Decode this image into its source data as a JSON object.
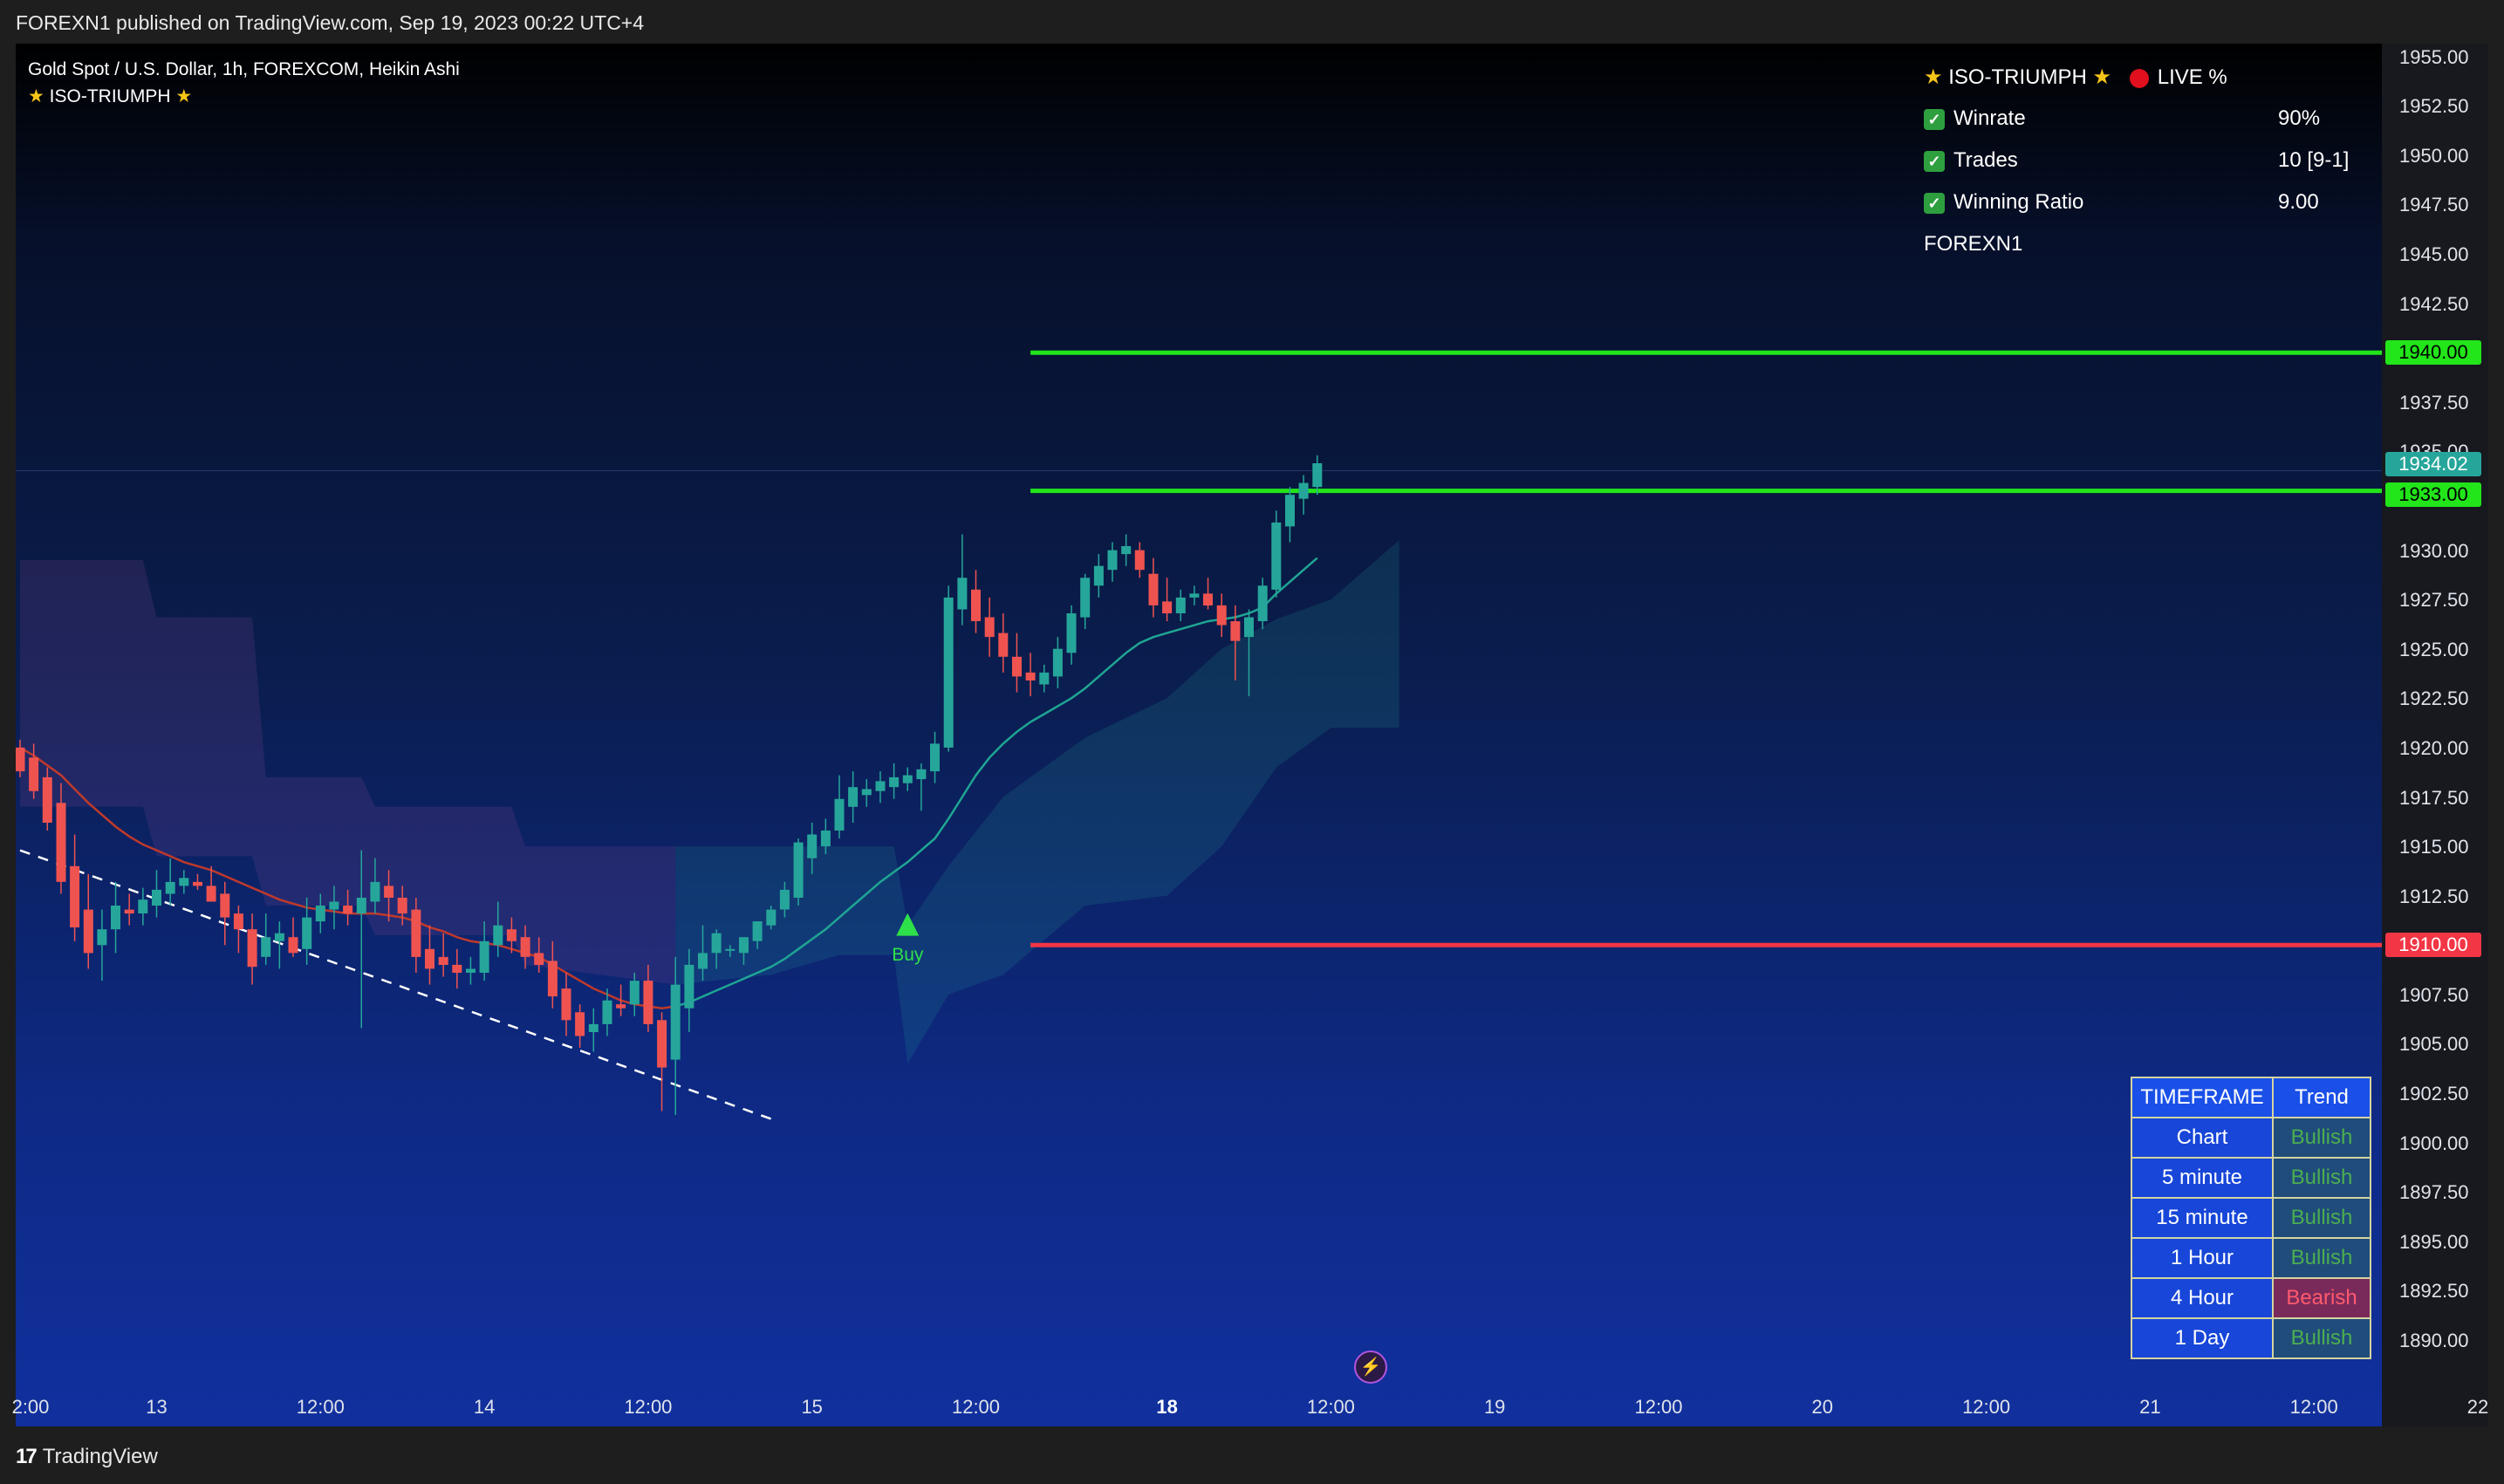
{
  "header": {
    "published_text": "FOREXN1 published on TradingView.com, Sep 19, 2023 00:22 UTC+4"
  },
  "legend": {
    "symbol_line": "Gold Spot / U.S. Dollar, 1h, FOREXCOM, Heikin Ashi",
    "indicator_line": "ISO-TRIUMPH"
  },
  "stats_panel": {
    "title": "ISO-TRIUMPH",
    "live_label": "LIVE %",
    "rows": [
      {
        "label": "Winrate",
        "value": "90%"
      },
      {
        "label": "Trades",
        "value": "10 [9-1]"
      },
      {
        "label": "Winning Ratio",
        "value": "9.00"
      }
    ],
    "author": "FOREXN1"
  },
  "trend_table": {
    "header": {
      "timeframe": "TIMEFRAME",
      "trend": "Trend"
    },
    "rows": [
      {
        "timeframe": "Chart",
        "trend": "Bullish"
      },
      {
        "timeframe": "5 minute",
        "trend": "Bullish"
      },
      {
        "timeframe": "15 minute",
        "trend": "Bullish"
      },
      {
        "timeframe": "1 Hour",
        "trend": "Bullish"
      },
      {
        "timeframe": "4 Hour",
        "trend": "Bearish"
      },
      {
        "timeframe": "1 Day",
        "trend": "Bullish"
      }
    ]
  },
  "colors": {
    "bull": "#26a69a",
    "bear": "#ef5350",
    "tp": "#22e51a",
    "sl": "#f23645",
    "last": "#26a69a"
  },
  "footer": {
    "brand": "TradingView"
  },
  "chart_data": {
    "type": "candlestick",
    "yaxis": {
      "ylim": [
        1888.5,
        1956.0
      ],
      "ticks": [
        "1955.00",
        "1952.50",
        "1950.00",
        "1947.50",
        "1945.00",
        "1942.50",
        "1937.50",
        "1935.00",
        "1930.00",
        "1927.50",
        "1925.00",
        "1922.50",
        "1920.00",
        "1917.50",
        "1915.00",
        "1912.50",
        "1907.50",
        "1905.00",
        "1902.50",
        "1900.00",
        "1897.50",
        "1895.00",
        "1892.50",
        "1890.00"
      ]
    },
    "xaxis": {
      "labels": [
        {
          "text": "2:00",
          "bar": -1
        },
        {
          "text": "13",
          "bar": 10
        },
        {
          "text": "12:00",
          "bar": 22
        },
        {
          "text": "14",
          "bar": 34
        },
        {
          "text": "12:00",
          "bar": 46
        },
        {
          "text": "15",
          "bar": 58
        },
        {
          "text": "12:00",
          "bar": 70
        },
        {
          "text": "18",
          "bar": 84,
          "bold": true
        },
        {
          "text": "12:00",
          "bar": 96
        },
        {
          "text": "19",
          "bar": 108
        },
        {
          "text": "12:00",
          "bar": 120
        },
        {
          "text": "20",
          "bar": 132
        },
        {
          "text": "12:00",
          "bar": 144
        },
        {
          "text": "21",
          "bar": 156
        },
        {
          "text": "12:00",
          "bar": 168
        },
        {
          "text": "22",
          "bar": 180
        }
      ]
    },
    "levels": [
      {
        "name": "take-profit",
        "value": 1940.0,
        "label": "1940.00",
        "start_bar": 74
      },
      {
        "name": "entry",
        "value": 1933.0,
        "label": "1933.00",
        "start_bar": 74
      },
      {
        "name": "stop-loss",
        "value": 1910.0,
        "label": "1910.00",
        "start_bar": 74
      }
    ],
    "last_price": {
      "value": 1934.02,
      "label": "1934.02"
    },
    "signal": {
      "type": "Buy",
      "bar": 65,
      "value": 1911.0,
      "label": "Buy"
    },
    "trendline": {
      "start": {
        "bar": 0,
        "value": 1914.8
      },
      "end": {
        "bar": 55,
        "value": 1901.2
      }
    },
    "candles": [
      [
        1920.0,
        1920.4,
        1918.5,
        1918.8
      ],
      [
        1919.5,
        1920.2,
        1917.4,
        1917.8
      ],
      [
        1918.5,
        1919.0,
        1915.8,
        1916.2
      ],
      [
        1917.2,
        1918.2,
        1912.6,
        1913.2
      ],
      [
        1914.0,
        1915.6,
        1910.2,
        1910.9
      ],
      [
        1911.8,
        1913.6,
        1908.8,
        1909.6
      ],
      [
        1910.0,
        1911.8,
        1908.2,
        1910.8
      ],
      [
        1910.8,
        1913.2,
        1909.6,
        1912.0
      ],
      [
        1911.8,
        1912.6,
        1911.0,
        1911.6
      ],
      [
        1911.6,
        1912.9,
        1911.0,
        1912.3
      ],
      [
        1912.0,
        1913.8,
        1911.4,
        1912.8
      ],
      [
        1912.6,
        1914.4,
        1912.0,
        1913.2
      ],
      [
        1913.0,
        1913.8,
        1912.6,
        1913.4
      ],
      [
        1913.2,
        1913.6,
        1912.8,
        1913.0
      ],
      [
        1913.0,
        1914.0,
        1912.4,
        1912.2
      ],
      [
        1912.6,
        1913.2,
        1910.0,
        1911.4
      ],
      [
        1911.6,
        1912.0,
        1909.6,
        1910.8
      ],
      [
        1910.8,
        1911.6,
        1908.0,
        1908.9
      ],
      [
        1909.4,
        1911.6,
        1909.0,
        1910.4
      ],
      [
        1910.2,
        1911.2,
        1908.8,
        1910.6
      ],
      [
        1910.4,
        1911.4,
        1909.4,
        1909.6
      ],
      [
        1909.8,
        1912.4,
        1909.0,
        1911.4
      ],
      [
        1911.2,
        1912.6,
        1910.6,
        1912.0
      ],
      [
        1911.8,
        1913.0,
        1910.8,
        1912.2
      ],
      [
        1912.0,
        1912.8,
        1911.0,
        1911.6
      ],
      [
        1911.6,
        1914.8,
        1905.8,
        1912.4
      ],
      [
        1912.2,
        1914.4,
        1911.6,
        1913.2
      ],
      [
        1913.0,
        1913.8,
        1911.2,
        1912.4
      ],
      [
        1912.4,
        1913.0,
        1911.0,
        1911.6
      ],
      [
        1911.8,
        1912.4,
        1908.6,
        1909.4
      ],
      [
        1909.8,
        1911.0,
        1908.0,
        1908.8
      ],
      [
        1909.4,
        1910.6,
        1908.4,
        1909.0
      ],
      [
        1909.0,
        1909.8,
        1907.8,
        1908.6
      ],
      [
        1908.6,
        1909.4,
        1908.0,
        1908.8
      ],
      [
        1908.6,
        1911.2,
        1908.2,
        1910.2
      ],
      [
        1910.0,
        1912.2,
        1909.4,
        1911.0
      ],
      [
        1910.8,
        1911.4,
        1909.6,
        1910.2
      ],
      [
        1910.4,
        1911.0,
        1908.8,
        1909.4
      ],
      [
        1909.6,
        1910.4,
        1908.6,
        1909.0
      ],
      [
        1909.2,
        1910.2,
        1906.8,
        1907.4
      ],
      [
        1907.8,
        1908.6,
        1905.4,
        1906.2
      ],
      [
        1906.6,
        1907.0,
        1904.8,
        1905.4
      ],
      [
        1905.6,
        1906.8,
        1904.6,
        1906.0
      ],
      [
        1906.0,
        1907.8,
        1905.4,
        1907.2
      ],
      [
        1907.0,
        1908.0,
        1906.4,
        1906.8
      ],
      [
        1907.0,
        1908.6,
        1906.4,
        1908.2
      ],
      [
        1908.2,
        1909.0,
        1905.6,
        1906.0
      ],
      [
        1906.2,
        1906.6,
        1901.6,
        1903.8
      ],
      [
        1904.2,
        1909.4,
        1901.4,
        1908.0
      ],
      [
        1906.8,
        1909.8,
        1905.6,
        1909.0
      ],
      [
        1908.8,
        1911.0,
        1908.2,
        1909.6
      ],
      [
        1909.6,
        1910.8,
        1908.8,
        1910.6
      ],
      [
        1909.8,
        1910.0,
        1909.4,
        1909.8
      ],
      [
        1909.6,
        1910.2,
        1909.0,
        1910.4
      ],
      [
        1910.2,
        1911.2,
        1909.8,
        1911.2
      ],
      [
        1911.0,
        1912.0,
        1910.8,
        1911.8
      ],
      [
        1911.8,
        1913.2,
        1911.4,
        1912.8
      ],
      [
        1912.4,
        1915.4,
        1912.0,
        1915.2
      ],
      [
        1914.4,
        1916.2,
        1913.6,
        1915.6
      ],
      [
        1915.0,
        1916.4,
        1914.6,
        1915.8
      ],
      [
        1915.8,
        1918.6,
        1915.4,
        1917.4
      ],
      [
        1917.0,
        1918.8,
        1916.2,
        1918.0
      ],
      [
        1917.6,
        1918.4,
        1917.0,
        1917.9
      ],
      [
        1917.8,
        1918.8,
        1917.2,
        1918.3
      ],
      [
        1918.0,
        1919.2,
        1917.4,
        1918.5
      ],
      [
        1918.2,
        1919.0,
        1917.8,
        1918.6
      ],
      [
        1918.4,
        1919.2,
        1916.8,
        1918.9
      ],
      [
        1918.8,
        1920.8,
        1918.2,
        1920.2
      ],
      [
        1920.0,
        1928.2,
        1919.8,
        1927.6
      ],
      [
        1927.0,
        1930.8,
        1926.2,
        1928.6
      ],
      [
        1928.0,
        1929.0,
        1925.8,
        1926.4
      ],
      [
        1926.6,
        1927.6,
        1924.6,
        1925.6
      ],
      [
        1925.8,
        1926.8,
        1923.8,
        1924.6
      ],
      [
        1924.6,
        1925.8,
        1922.8,
        1923.6
      ],
      [
        1923.8,
        1924.8,
        1922.6,
        1923.4
      ],
      [
        1923.2,
        1924.2,
        1922.8,
        1923.8
      ],
      [
        1923.6,
        1925.6,
        1923.0,
        1925.0
      ],
      [
        1924.8,
        1927.2,
        1924.2,
        1926.8
      ],
      [
        1926.6,
        1928.8,
        1926.0,
        1928.6
      ],
      [
        1928.2,
        1929.8,
        1927.6,
        1929.2
      ],
      [
        1929.0,
        1930.4,
        1928.4,
        1930.0
      ],
      [
        1929.8,
        1930.8,
        1929.2,
        1930.2
      ],
      [
        1930.0,
        1930.4,
        1928.6,
        1929.0
      ],
      [
        1928.8,
        1929.6,
        1926.6,
        1927.2
      ],
      [
        1927.4,
        1928.6,
        1926.4,
        1926.8
      ],
      [
        1926.8,
        1928.0,
        1926.4,
        1927.6
      ],
      [
        1927.6,
        1928.2,
        1927.2,
        1927.8
      ],
      [
        1927.8,
        1928.6,
        1927.0,
        1927.2
      ],
      [
        1927.2,
        1927.8,
        1925.6,
        1926.2
      ],
      [
        1926.4,
        1927.2,
        1923.4,
        1925.4
      ],
      [
        1925.6,
        1927.0,
        1922.6,
        1926.6
      ],
      [
        1926.4,
        1928.6,
        1926.0,
        1928.2
      ],
      [
        1928.0,
        1932.0,
        1927.6,
        1931.4
      ],
      [
        1931.2,
        1933.2,
        1930.4,
        1932.8
      ],
      [
        1932.6,
        1933.8,
        1931.8,
        1933.4
      ],
      [
        1933.2,
        1934.8,
        1932.8,
        1934.4
      ]
    ],
    "ema": [
      1920.0,
      1919.6,
      1919.1,
      1918.6,
      1917.9,
      1917.2,
      1916.6,
      1916.0,
      1915.5,
      1915.1,
      1914.8,
      1914.5,
      1914.2,
      1914.0,
      1913.8,
      1913.5,
      1913.2,
      1912.9,
      1912.6,
      1912.3,
      1912.1,
      1911.9,
      1911.8,
      1911.7,
      1911.6,
      1911.6,
      1911.6,
      1911.5,
      1911.4,
      1911.2,
      1910.9,
      1910.7,
      1910.4,
      1910.2,
      1910.1,
      1910.0,
      1909.8,
      1909.6,
      1909.4,
      1909.0,
      1908.6,
      1908.2,
      1907.8,
      1907.5,
      1907.2,
      1907.0,
      1906.9,
      1906.8,
      1906.9,
      1907.1,
      1907.4,
      1907.7,
      1908.0,
      1908.3,
      1908.6,
      1908.9,
      1909.3,
      1909.8,
      1910.3,
      1910.8,
      1911.4,
      1912.0,
      1912.6,
      1913.2,
      1913.7,
      1914.2,
      1914.8,
      1915.4,
      1916.4,
      1917.5,
      1918.6,
      1919.5,
      1920.2,
      1920.8,
      1921.3,
      1921.7,
      1922.1,
      1922.5,
      1923.0,
      1923.6,
      1924.2,
      1924.8,
      1925.3,
      1925.6,
      1925.8,
      1926.0,
      1926.2,
      1926.4,
      1926.5,
      1926.6,
      1926.8,
      1927.1,
      1927.8,
      1928.4,
      1929.0,
      1929.6
    ],
    "ema_color_switch_bar": 48,
    "cloud": [
      {
        "bar": 0,
        "top": 1929.5,
        "bottom": 1917.0
      },
      {
        "bar": 9,
        "top": 1929.5,
        "bottom": 1917.0
      },
      {
        "bar": 10,
        "top": 1926.6,
        "bottom": 1914.5
      },
      {
        "bar": 17,
        "top": 1926.6,
        "bottom": 1914.5
      },
      {
        "bar": 18,
        "top": 1918.5,
        "bottom": 1912.0
      },
      {
        "bar": 25,
        "top": 1918.5,
        "bottom": 1912.0
      },
      {
        "bar": 26,
        "top": 1917.0,
        "bottom": 1910.5
      },
      {
        "bar": 36,
        "top": 1917.0,
        "bottom": 1910.5
      },
      {
        "bar": 37,
        "top": 1915.0,
        "bottom": 1909.0
      },
      {
        "bar": 48,
        "top": 1915.0,
        "bottom": 1908.0
      },
      {
        "bar": 55,
        "top": 1915.0,
        "bottom": 1908.5
      },
      {
        "bar": 60,
        "top": 1915.0,
        "bottom": 1909.5
      },
      {
        "bar": 64,
        "top": 1915.0,
        "bottom": 1909.5
      },
      {
        "bar": 65,
        "top": 1911.0,
        "bottom": 1904.0
      },
      {
        "bar": 68,
        "top": 1914.0,
        "bottom": 1907.5
      },
      {
        "bar": 72,
        "top": 1917.5,
        "bottom": 1908.5
      },
      {
        "bar": 78,
        "top": 1920.5,
        "bottom": 1912.0
      },
      {
        "bar": 84,
        "top": 1922.5,
        "bottom": 1912.5
      },
      {
        "bar": 88,
        "top": 1925.0,
        "bottom": 1915.0
      },
      {
        "bar": 92,
        "top": 1926.5,
        "bottom": 1919.0
      },
      {
        "bar": 96,
        "top": 1927.5,
        "bottom": 1921.0
      },
      {
        "bar": 101,
        "top": 1930.5,
        "bottom": 1921.0
      }
    ]
  }
}
